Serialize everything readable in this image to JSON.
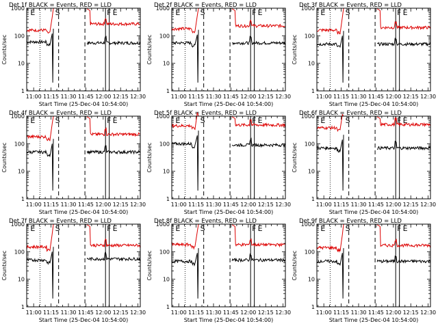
{
  "figure": {
    "x_axis_label": "Start Time (25-Dec-04 10:54:00)",
    "y_axis_label": "Counts/sec",
    "x_tick_labels": [
      "11:00",
      "11:15",
      "11:30",
      "11:45",
      "12:00",
      "12:15",
      "12:30"
    ],
    "y_tick_labels": [
      "1",
      "10",
      "100",
      "1000"
    ],
    "colors": {
      "events": "#000000",
      "lld": "#dd0000"
    }
  },
  "chart_data": [
    {
      "type": "line",
      "title": "Det 1f BLACK = Events, RED = LLD",
      "xlabel": "Start Time (25-Dec-04 10:54:00)",
      "ylabel": "Counts/sec",
      "ylim": [
        1,
        1000
      ],
      "log_y": true,
      "x_range": [
        "10:54",
        "12:32"
      ],
      "series": [
        {
          "name": "Events",
          "color": "#000000",
          "level_before": 60,
          "level_after": 55,
          "gap": [
            "11:18",
            "11:46"
          ]
        },
        {
          "name": "LLD",
          "color": "#dd0000",
          "level_before": 160,
          "level_after": 270,
          "gap": [
            "11:18",
            "11:46"
          ]
        }
      ],
      "markers": [
        {
          "label": "E",
          "time": "10:56"
        },
        {
          "label": "S",
          "time": "11:18"
        },
        {
          "label": "F",
          "time": "12:02"
        },
        {
          "label": "E",
          "time": "12:07"
        }
      ]
    },
    {
      "type": "line",
      "title": "Det 2f BLACK = Events, RED = LLD",
      "xlabel": "Start Time (25-Dec-04 10:54:00)",
      "ylabel": "Counts/sec",
      "ylim": [
        1,
        1000
      ],
      "log_y": true,
      "x_range": [
        "10:54",
        "12:32"
      ],
      "series": [
        {
          "name": "Events",
          "color": "#000000",
          "level_before": 55,
          "level_after": 55,
          "gap": [
            "11:18",
            "11:46"
          ]
        },
        {
          "name": "LLD",
          "color": "#dd0000",
          "level_before": 180,
          "level_after": 230,
          "gap": [
            "11:18",
            "11:46"
          ]
        }
      ],
      "markers": [
        {
          "label": "E",
          "time": "10:56"
        },
        {
          "label": "S",
          "time": "11:18"
        },
        {
          "label": "F",
          "time": "12:02"
        },
        {
          "label": "E",
          "time": "12:07"
        }
      ]
    },
    {
      "type": "line",
      "title": "Det 3f BLACK = Events, RED = LLD",
      "xlabel": "Start Time (25-Dec-04 10:54:00)",
      "ylabel": "Counts/sec",
      "ylim": [
        1,
        1000
      ],
      "log_y": true,
      "x_range": [
        "10:54",
        "12:32"
      ],
      "series": [
        {
          "name": "Events",
          "color": "#000000",
          "level_before": 50,
          "level_after": 50,
          "gap": [
            "11:18",
            "11:46"
          ]
        },
        {
          "name": "LLD",
          "color": "#dd0000",
          "level_before": 160,
          "level_after": 200,
          "gap": [
            "11:18",
            "11:46"
          ]
        }
      ],
      "markers": [
        {
          "label": "E",
          "time": "10:56"
        },
        {
          "label": "S",
          "time": "11:18"
        },
        {
          "label": "F",
          "time": "12:02"
        },
        {
          "label": "E",
          "time": "12:07"
        }
      ]
    },
    {
      "type": "line",
      "title": "Det 4f BLACK = Events, RED = LLD",
      "xlabel": "Start Time (25-Dec-04 10:54:00)",
      "ylabel": "Counts/sec",
      "ylim": [
        1,
        1000
      ],
      "log_y": true,
      "x_range": [
        "10:54",
        "12:32"
      ],
      "series": [
        {
          "name": "Events",
          "color": "#000000",
          "level_before": 50,
          "level_after": 50,
          "gap": [
            "11:18",
            "11:46"
          ]
        },
        {
          "name": "LLD",
          "color": "#dd0000",
          "level_before": 180,
          "level_after": 220,
          "gap": [
            "11:18",
            "11:46"
          ]
        }
      ],
      "markers": [
        {
          "label": "E",
          "time": "10:56"
        },
        {
          "label": "S",
          "time": "11:18"
        },
        {
          "label": "F",
          "time": "12:02"
        },
        {
          "label": "E",
          "time": "12:07"
        }
      ]
    },
    {
      "type": "line",
      "title": "Det 5f BLACK = Events, RED = LLD",
      "xlabel": "Start Time (25-Dec-04 10:54:00)",
      "ylabel": "Counts/sec",
      "ylim": [
        1,
        1000
      ],
      "log_y": true,
      "x_range": [
        "10:54",
        "12:32"
      ],
      "series": [
        {
          "name": "Events",
          "color": "#000000",
          "level_before": 100,
          "level_after": 90,
          "gap": [
            "11:18",
            "11:46"
          ]
        },
        {
          "name": "LLD",
          "color": "#dd0000",
          "level_before": 450,
          "level_after": 480,
          "gap": [
            "11:18",
            "11:46"
          ]
        }
      ],
      "markers": [
        {
          "label": "E",
          "time": "10:56"
        },
        {
          "label": "S",
          "time": "11:18"
        },
        {
          "label": "F",
          "time": "12:02"
        },
        {
          "label": "E",
          "time": "12:07"
        }
      ]
    },
    {
      "type": "line",
      "title": "Det 6f BLACK = Events, RED = LLD",
      "xlabel": "Start Time (25-Dec-04 10:54:00)",
      "ylabel": "Counts/sec",
      "ylim": [
        1,
        1000
      ],
      "log_y": true,
      "x_range": [
        "10:54",
        "12:32"
      ],
      "series": [
        {
          "name": "Events",
          "color": "#000000",
          "level_before": 70,
          "level_after": 70,
          "gap": [
            "11:18",
            "11:46"
          ]
        },
        {
          "name": "LLD",
          "color": "#dd0000",
          "level_before": 380,
          "level_after": 500,
          "gap": [
            "11:18",
            "11:46"
          ]
        }
      ],
      "markers": [
        {
          "label": "E",
          "time": "10:56"
        },
        {
          "label": "S",
          "time": "11:18"
        },
        {
          "label": "F",
          "time": "12:02"
        },
        {
          "label": "E",
          "time": "12:07"
        }
      ]
    },
    {
      "type": "line",
      "title": "Det 7f BLACK = Events, RED = LLD",
      "xlabel": "Start Time (25-Dec-04 10:54:00)",
      "ylabel": "Counts/sec",
      "ylim": [
        1,
        1000
      ],
      "log_y": true,
      "x_range": [
        "10:54",
        "12:32"
      ],
      "series": [
        {
          "name": "Events",
          "color": "#000000",
          "level_before": 50,
          "level_after": 55,
          "gap": [
            "11:18",
            "11:46"
          ]
        },
        {
          "name": "LLD",
          "color": "#dd0000",
          "level_before": 150,
          "level_after": 170,
          "gap": [
            "11:18",
            "11:46"
          ]
        }
      ],
      "markers": [
        {
          "label": "E",
          "time": "10:56"
        },
        {
          "label": "S",
          "time": "11:18"
        },
        {
          "label": "F",
          "time": "12:02"
        },
        {
          "label": "E",
          "time": "12:07"
        }
      ]
    },
    {
      "type": "line",
      "title": "Det 8f BLACK = Events, RED = LLD",
      "xlabel": "Start Time (25-Dec-04 10:54:00)",
      "ylabel": "Counts/sec",
      "ylim": [
        1,
        1000
      ],
      "log_y": true,
      "x_range": [
        "10:54",
        "12:32"
      ],
      "series": [
        {
          "name": "Events",
          "color": "#000000",
          "level_before": 45,
          "level_after": 50,
          "gap": [
            "11:18",
            "11:46"
          ]
        },
        {
          "name": "LLD",
          "color": "#dd0000",
          "level_before": 180,
          "level_after": 180,
          "gap": [
            "11:18",
            "11:46"
          ]
        }
      ],
      "markers": [
        {
          "label": "E",
          "time": "10:56"
        },
        {
          "label": "S",
          "time": "11:18"
        },
        {
          "label": "F",
          "time": "12:02"
        },
        {
          "label": "E",
          "time": "12:07"
        }
      ]
    },
    {
      "type": "line",
      "title": "Det 9f BLACK = Events, RED = LLD",
      "xlabel": "Start Time (25-Dec-04 10:54:00)",
      "ylabel": "Counts/sec",
      "ylim": [
        1,
        1000
      ],
      "log_y": true,
      "x_range": [
        "10:54",
        "12:32"
      ],
      "series": [
        {
          "name": "Events",
          "color": "#000000",
          "level_before": 45,
          "level_after": 45,
          "gap": [
            "11:18",
            "11:46"
          ]
        },
        {
          "name": "LLD",
          "color": "#dd0000",
          "level_before": 140,
          "level_after": 170,
          "gap": [
            "11:18",
            "11:46"
          ]
        }
      ],
      "markers": [
        {
          "label": "E",
          "time": "10:56"
        },
        {
          "label": "S",
          "time": "11:18"
        },
        {
          "label": "F",
          "time": "12:02"
        },
        {
          "label": "E",
          "time": "12:07"
        }
      ]
    }
  ]
}
